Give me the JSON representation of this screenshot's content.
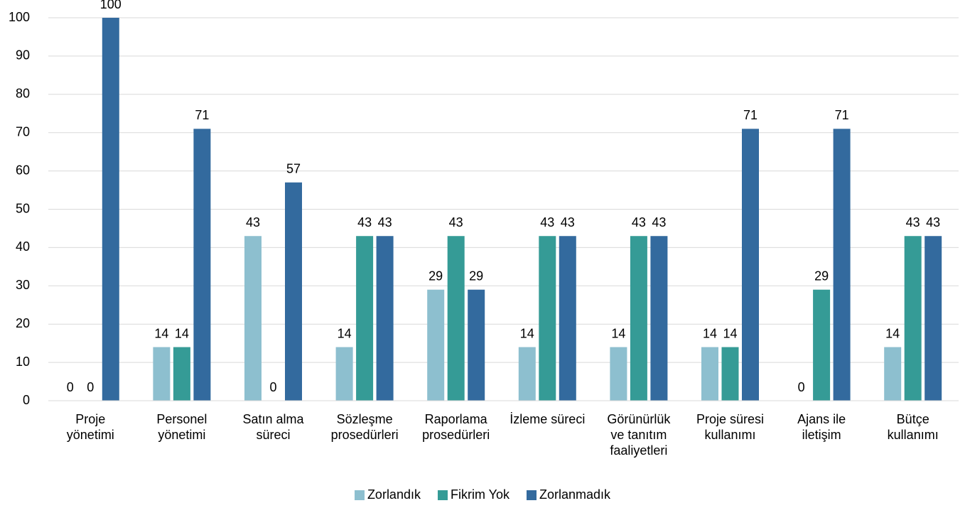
{
  "chart_data": {
    "type": "bar",
    "categories": [
      "Proje\nyönetimi",
      "Personel\nyönetimi",
      "Satın alma\nsüreci",
      "Sözleşme\nprosedürleri",
      "Raporlama\nprosedürleri",
      "İzleme süreci",
      "Görünürlük\nve tanıtım\nfaaliyetleri",
      "Proje süresi\nkullanımı",
      "Ajans ile\niletişim",
      "Bütçe\nkullanımı"
    ],
    "series": [
      {
        "name": "Zorlandık",
        "color": "#8dbfcf",
        "values": [
          0,
          14,
          43,
          14,
          29,
          14,
          14,
          14,
          0,
          14
        ]
      },
      {
        "name": "Fikrim Yok",
        "color": "#359b96",
        "values": [
          0,
          14,
          0,
          43,
          43,
          43,
          43,
          14,
          29,
          43
        ]
      },
      {
        "name": "Zorlanmadık",
        "color": "#336a9e",
        "values": [
          100,
          71,
          57,
          43,
          29,
          43,
          43,
          71,
          71,
          43
        ]
      }
    ],
    "ylim": [
      0,
      100
    ],
    "yticks": [
      0,
      10,
      20,
      30,
      40,
      50,
      60,
      70,
      80,
      90,
      100
    ],
    "grid": true,
    "legend": "bottom"
  }
}
